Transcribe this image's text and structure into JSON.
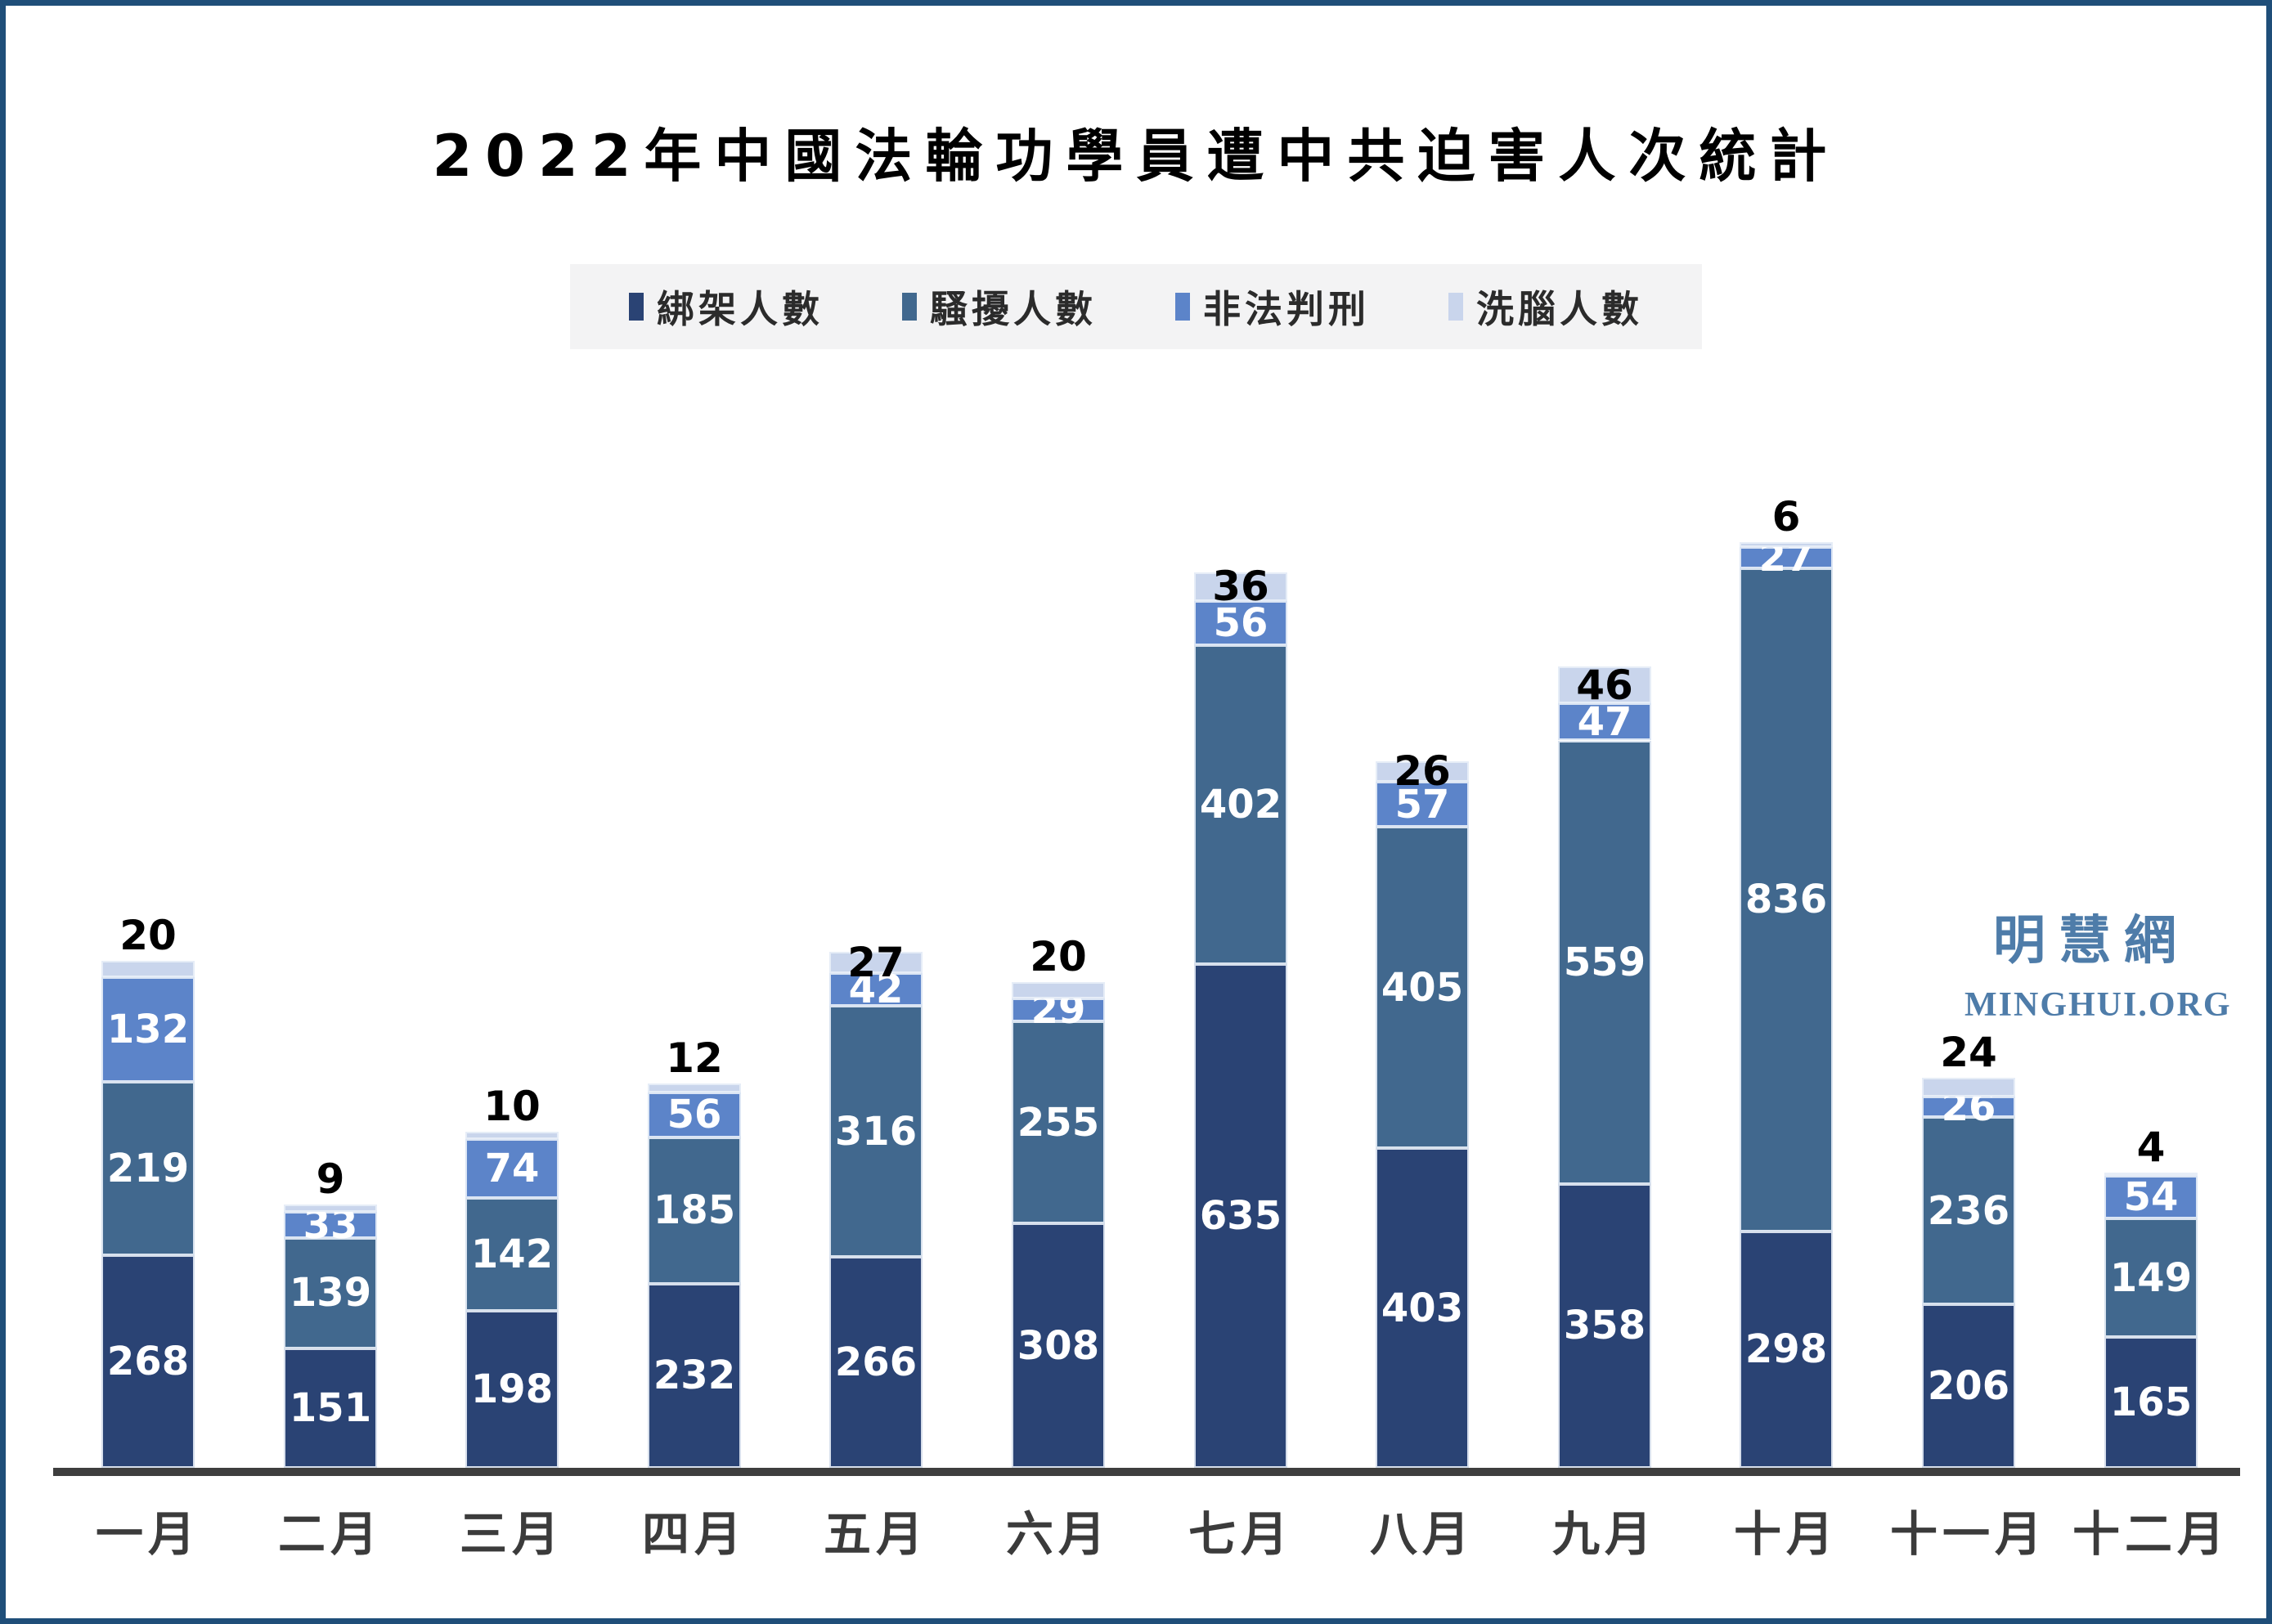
{
  "title": "2022年中國法輪功學員遭中共迫害人次統計",
  "watermark": {
    "cjk": "明慧網",
    "latin": "MINGHUI.ORG"
  },
  "colors": {
    "frame_border": "#1F4E79",
    "axis_line": "#3E3E3E",
    "legend_background": "#F3F3F4",
    "abduction": "#2A4374",
    "harassment": "#41688E",
    "sentenced": "#5C84C9",
    "brainwashing": "#C9D5EC",
    "watermark": "#4E7CA9",
    "x_label": "#3B3B3B"
  },
  "chart_data": {
    "type": "bar",
    "stacked": true,
    "title": "2022年中國法輪功學員遭中共迫害人次統計",
    "legend_position": "top",
    "value_labels": true,
    "grid": false,
    "categories": [
      "一月",
      "二月",
      "三月",
      "四月",
      "五月",
      "六月",
      "七月",
      "八月",
      "九月",
      "十月",
      "十一月",
      "十二月"
    ],
    "series": [
      {
        "name": "綁架人數",
        "color": "#2A4374",
        "label_color": "#ffffff",
        "values": [
          268,
          151,
          198,
          232,
          266,
          308,
          635,
          403,
          358,
          298,
          206,
          165
        ]
      },
      {
        "name": "騷擾人數",
        "color": "#41688E",
        "label_color": "#ffffff",
        "values": [
          219,
          139,
          142,
          185,
          316,
          255,
          402,
          405,
          559,
          836,
          236,
          149
        ]
      },
      {
        "name": "非法判刑",
        "color": "#5C84C9",
        "label_color": "#ffffff",
        "values": [
          132,
          33,
          74,
          56,
          42,
          29,
          56,
          57,
          47,
          27,
          26,
          54
        ]
      },
      {
        "name": "洗腦人數",
        "color": "#C9D5EC",
        "label_color": "#000000",
        "values": [
          20,
          9,
          10,
          12,
          27,
          20,
          36,
          26,
          46,
          6,
          24,
          4
        ]
      }
    ]
  }
}
